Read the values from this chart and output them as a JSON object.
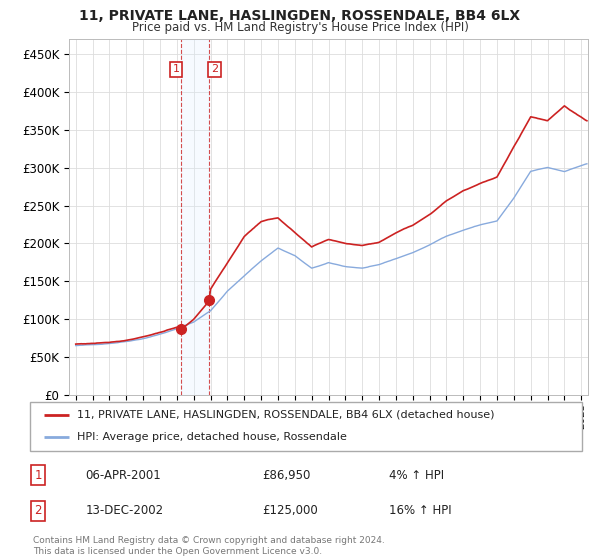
{
  "title": "11, PRIVATE LANE, HASLINGDEN, ROSSENDALE, BB4 6LX",
  "subtitle": "Price paid vs. HM Land Registry's House Price Index (HPI)",
  "ylabel_ticks": [
    "£0",
    "£50K",
    "£100K",
    "£150K",
    "£200K",
    "£250K",
    "£300K",
    "£350K",
    "£400K",
    "£450K"
  ],
  "ylim": [
    0,
    470000
  ],
  "xlim_start": 1994.6,
  "xlim_end": 2025.4,
  "legend_property_label": "11, PRIVATE LANE, HASLINGDEN, ROSSENDALE, BB4 6LX (detached house)",
  "legend_hpi_label": "HPI: Average price, detached house, Rossendale",
  "transaction1_date": "06-APR-2001",
  "transaction1_price": "£86,950",
  "transaction1_pct": "4% ↑ HPI",
  "transaction2_date": "13-DEC-2002",
  "transaction2_price": "£125,000",
  "transaction2_pct": "16% ↑ HPI",
  "footer": "Contains HM Land Registry data © Crown copyright and database right 2024.\nThis data is licensed under the Open Government Licence v3.0.",
  "property_color": "#cc2222",
  "hpi_color": "#88aadd",
  "transaction1_x": 2001.25,
  "transaction2_x": 2002.92,
  "vline_color": "#cc2222",
  "shading_color": "#ddeeff",
  "background_color": "#ffffff",
  "grid_color": "#dddddd",
  "hpi_anchors_x": [
    1995.0,
    1996.0,
    1997.0,
    1998.0,
    1999.0,
    2000.0,
    2001.0,
    2002.0,
    2003.0,
    2004.0,
    2005.0,
    2006.0,
    2007.0,
    2008.0,
    2009.0,
    2010.0,
    2011.0,
    2012.0,
    2013.0,
    2014.0,
    2015.0,
    2016.0,
    2017.0,
    2018.0,
    2019.0,
    2020.0,
    2021.0,
    2022.0,
    2023.0,
    2024.0,
    2025.3
  ],
  "hpi_anchors_y": [
    65000,
    66000,
    68000,
    71000,
    75000,
    81000,
    88000,
    97000,
    112000,
    138000,
    158000,
    178000,
    195000,
    185000,
    168000,
    175000,
    170000,
    168000,
    172000,
    180000,
    188000,
    198000,
    210000,
    218000,
    225000,
    230000,
    260000,
    295000,
    300000,
    295000,
    305000
  ],
  "prop_anchors_x": [
    1995.0,
    1996.0,
    1997.0,
    1998.0,
    1999.0,
    2000.0,
    2001.0,
    2001.25,
    2002.0,
    2002.92,
    2003.0,
    2004.0,
    2005.0,
    2006.0,
    2007.0,
    2008.0,
    2009.0,
    2010.0,
    2011.0,
    2012.0,
    2013.0,
    2014.0,
    2015.0,
    2016.0,
    2017.0,
    2018.0,
    2019.0,
    2020.0,
    2021.0,
    2022.0,
    2023.0,
    2024.0,
    2025.3
  ],
  "prop_anchors_y": [
    67000,
    68000,
    70000,
    73000,
    78000,
    84000,
    90000,
    86950,
    100000,
    125000,
    140000,
    175000,
    210000,
    230000,
    235000,
    215000,
    195000,
    205000,
    200000,
    198000,
    202000,
    215000,
    225000,
    240000,
    258000,
    272000,
    282000,
    290000,
    330000,
    370000,
    365000,
    385000,
    365000
  ]
}
